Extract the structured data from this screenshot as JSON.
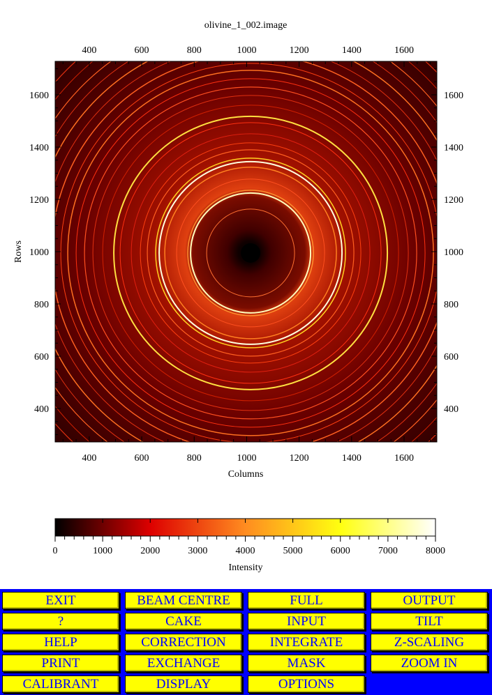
{
  "title": "olivine_1_002.image",
  "chart_data": {
    "type": "heatmap",
    "title": "olivine_1_002.image",
    "xlabel": "Columns",
    "ylabel": "Rows",
    "xlim": [
      270,
      1725
    ],
    "ylim": [
      272,
      1728
    ],
    "x_ticks": [
      400,
      600,
      800,
      1000,
      1200,
      1400,
      1600
    ],
    "y_ticks": [
      400,
      600,
      800,
      1000,
      1200,
      1400,
      1600
    ],
    "description_colormap": "black-red-orange-yellow-white",
    "colorbar": {
      "label": "Intensity",
      "range": [
        0,
        8000
      ],
      "ticks": [
        0,
        1000,
        2000,
        3000,
        4000,
        5000,
        6000,
        7000,
        8000
      ],
      "colors": [
        "#000000",
        "#dd0000",
        "#ff8c20",
        "#ffff10",
        "#ffffff"
      ]
    },
    "beam_centre": [
      1015,
      995
    ]
  },
  "buttons": [
    [
      "EXIT",
      "BEAM CENTRE",
      "FULL",
      "OUTPUT"
    ],
    [
      "?",
      "CAKE",
      "INPUT",
      "TILT"
    ],
    [
      "HELP",
      "CORRECTION",
      "INTEGRATE",
      "Z-SCALING"
    ],
    [
      "PRINT",
      "EXCHANGE",
      "MASK",
      "ZOOM IN"
    ],
    [
      "CALIBRANT",
      "DISPLAY",
      "OPTIONS"
    ]
  ],
  "colors": {
    "panel": "#0000ff",
    "button": "#ffff00",
    "button_text": "#0000ff"
  }
}
